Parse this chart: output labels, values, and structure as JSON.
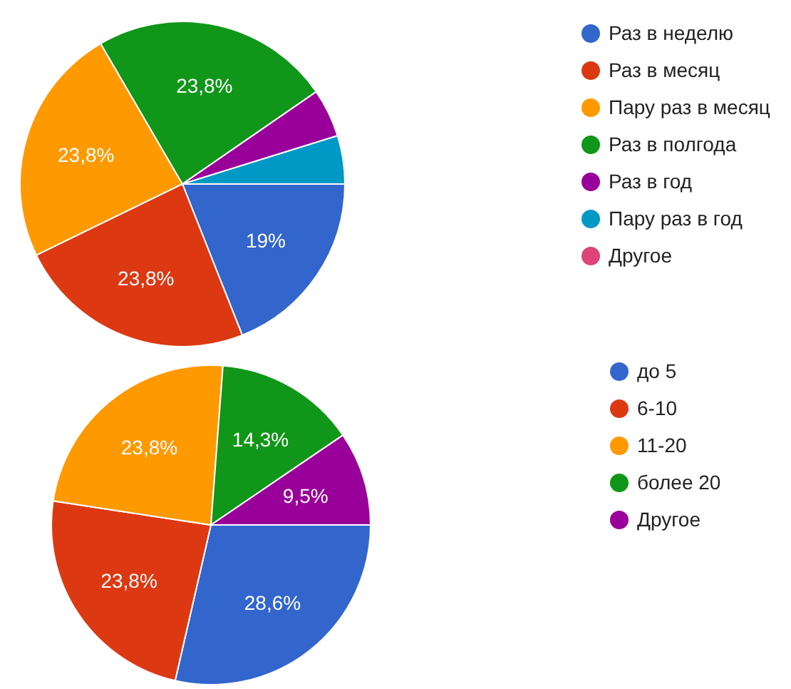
{
  "chart_data": [
    {
      "type": "pie",
      "categories": [
        "Раз в неделю",
        "Раз в месяц",
        "Пару раз в месяц",
        "Раз в полгода",
        "Раз в год",
        "Пару раз в год",
        "Другое"
      ],
      "values": [
        19,
        23.8,
        23.8,
        23.8,
        4.8,
        4.8,
        0
      ],
      "colors": [
        "#3366cc",
        "#dc3912",
        "#ff9900",
        "#109618",
        "#990099",
        "#0099c6",
        "#dd4477"
      ],
      "value_labels": [
        "19%",
        "23,8%",
        "23,8%",
        "23,8%",
        null,
        null,
        null
      ],
      "legend": "right"
    },
    {
      "type": "pie",
      "categories": [
        "до 5",
        "6-10",
        "11-20",
        "более 20",
        "Другое"
      ],
      "values": [
        28.6,
        23.8,
        23.8,
        14.3,
        9.5
      ],
      "colors": [
        "#3366cc",
        "#dc3912",
        "#ff9900",
        "#109618",
        "#990099"
      ],
      "value_labels": [
        "28,6%",
        "23,8%",
        "23,8%",
        "14,3%",
        "9,5%"
      ],
      "legend": "right"
    }
  ]
}
